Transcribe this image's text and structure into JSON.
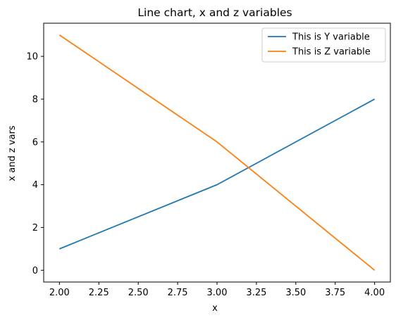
{
  "chart_data": {
    "type": "line",
    "title": "Line chart, x and z variables",
    "xlabel": "x",
    "ylabel": "x and z vars",
    "x": [
      2,
      3,
      4
    ],
    "xlim": [
      1.9,
      4.1
    ],
    "ylim": [
      -0.55,
      11.55
    ],
    "xticks": [
      2.0,
      2.25,
      2.5,
      2.75,
      3.0,
      3.25,
      3.5,
      3.75,
      4.0
    ],
    "xtick_labels": [
      "2.00",
      "2.25",
      "2.50",
      "2.75",
      "3.00",
      "3.25",
      "3.50",
      "3.75",
      "4.00"
    ],
    "yticks": [
      0,
      2,
      4,
      6,
      8,
      10
    ],
    "ytick_labels": [
      "0",
      "2",
      "4",
      "6",
      "8",
      "10"
    ],
    "grid": false,
    "legend_position": "top-right",
    "series": [
      {
        "name": "This is Y variable",
        "values": [
          1,
          4,
          8
        ],
        "color": "#1f77b4"
      },
      {
        "name": "This is Z variable",
        "values": [
          11,
          6,
          0
        ],
        "color": "#ff7f0e"
      }
    ]
  }
}
